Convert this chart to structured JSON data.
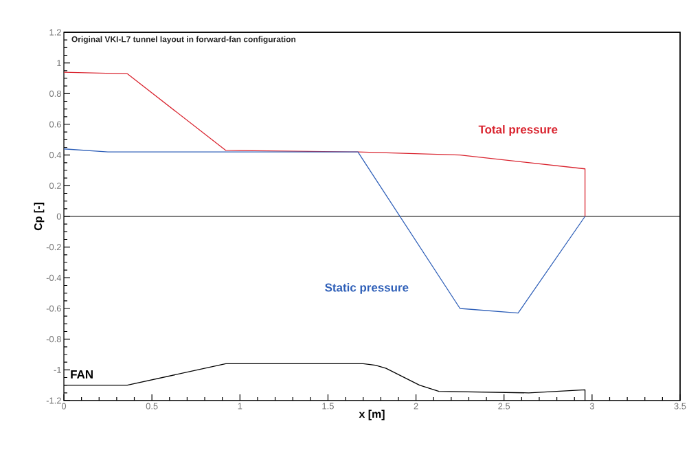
{
  "chart_data": {
    "type": "line",
    "title": "Original VKI-L7 tunnel layout in forward-fan configuration",
    "xlabel": "x [m]",
    "ylabel": "Cp [-]",
    "series": [
      {
        "name": "Total pressure",
        "color": "#d9232e",
        "x": [
          0,
          0.36,
          0.92,
          1.67,
          2.25,
          2.96,
          2.96
        ],
        "values": [
          0.94,
          0.93,
          0.43,
          0.42,
          0.4,
          0.31,
          0
        ]
      },
      {
        "name": "Static pressure",
        "color": "#2e5fb8",
        "x": [
          0,
          0.25,
          1.67,
          2.25,
          2.58,
          2.96
        ],
        "values": [
          0.44,
          0.42,
          0.42,
          -0.6,
          -0.63,
          0
        ]
      },
      {
        "color": "#000000",
        "x": [
          0,
          0.36,
          0.92,
          1.7,
          1.77,
          1.83,
          2.02,
          2.13,
          2.64,
          2.96,
          2.96
        ],
        "values": [
          -1.1,
          -1.1,
          -0.96,
          -0.96,
          -0.97,
          -0.99,
          -1.1,
          -1.14,
          -1.15,
          -1.13,
          -1.2
        ]
      }
    ],
    "xlim": [
      0,
      3.5
    ],
    "ylim": [
      -1.2,
      1.2
    ],
    "xticks": [
      0,
      0.5,
      1,
      1.5,
      2,
      2.5,
      3,
      3.5
    ],
    "yticks": [
      -1.2,
      -1,
      -0.8,
      -0.6,
      -0.4,
      -0.2,
      0,
      0.2,
      0.4,
      0.6,
      0.8,
      1,
      1.2
    ],
    "annotations": [
      "FAN"
    ],
    "ref_lines": [
      {
        "axis": "y",
        "value": 0,
        "color": "#000000"
      }
    ],
    "line_style": "solid"
  }
}
